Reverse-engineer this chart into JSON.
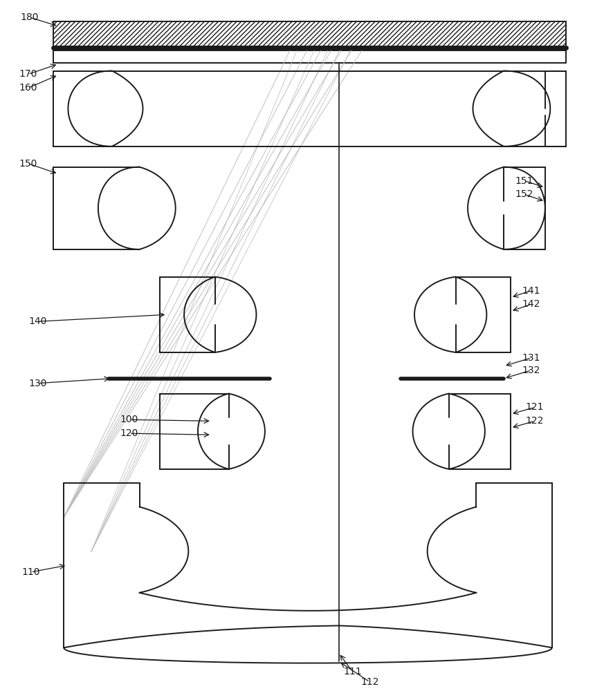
{
  "fig_width": 8.86,
  "fig_height": 10.0,
  "dpi": 100,
  "bg_color": "#ffffff",
  "lc": "#1a1a1a",
  "rc": "#bbbbbb",
  "lw_main": 1.4,
  "lw_ray": 0.7,
  "lw_axis": 1.2,
  "lw_stop": 3.0,
  "font_size": 10
}
